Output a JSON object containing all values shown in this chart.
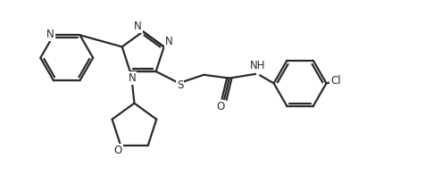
{
  "bg_color": "#ffffff",
  "line_color": "#2a2a2a",
  "line_width": 1.6,
  "font_size": 8.5,
  "figsize": [
    4.77,
    1.96
  ],
  "dpi": 100,
  "xlim": [
    0,
    10
  ],
  "ylim": [
    0,
    4.1
  ]
}
